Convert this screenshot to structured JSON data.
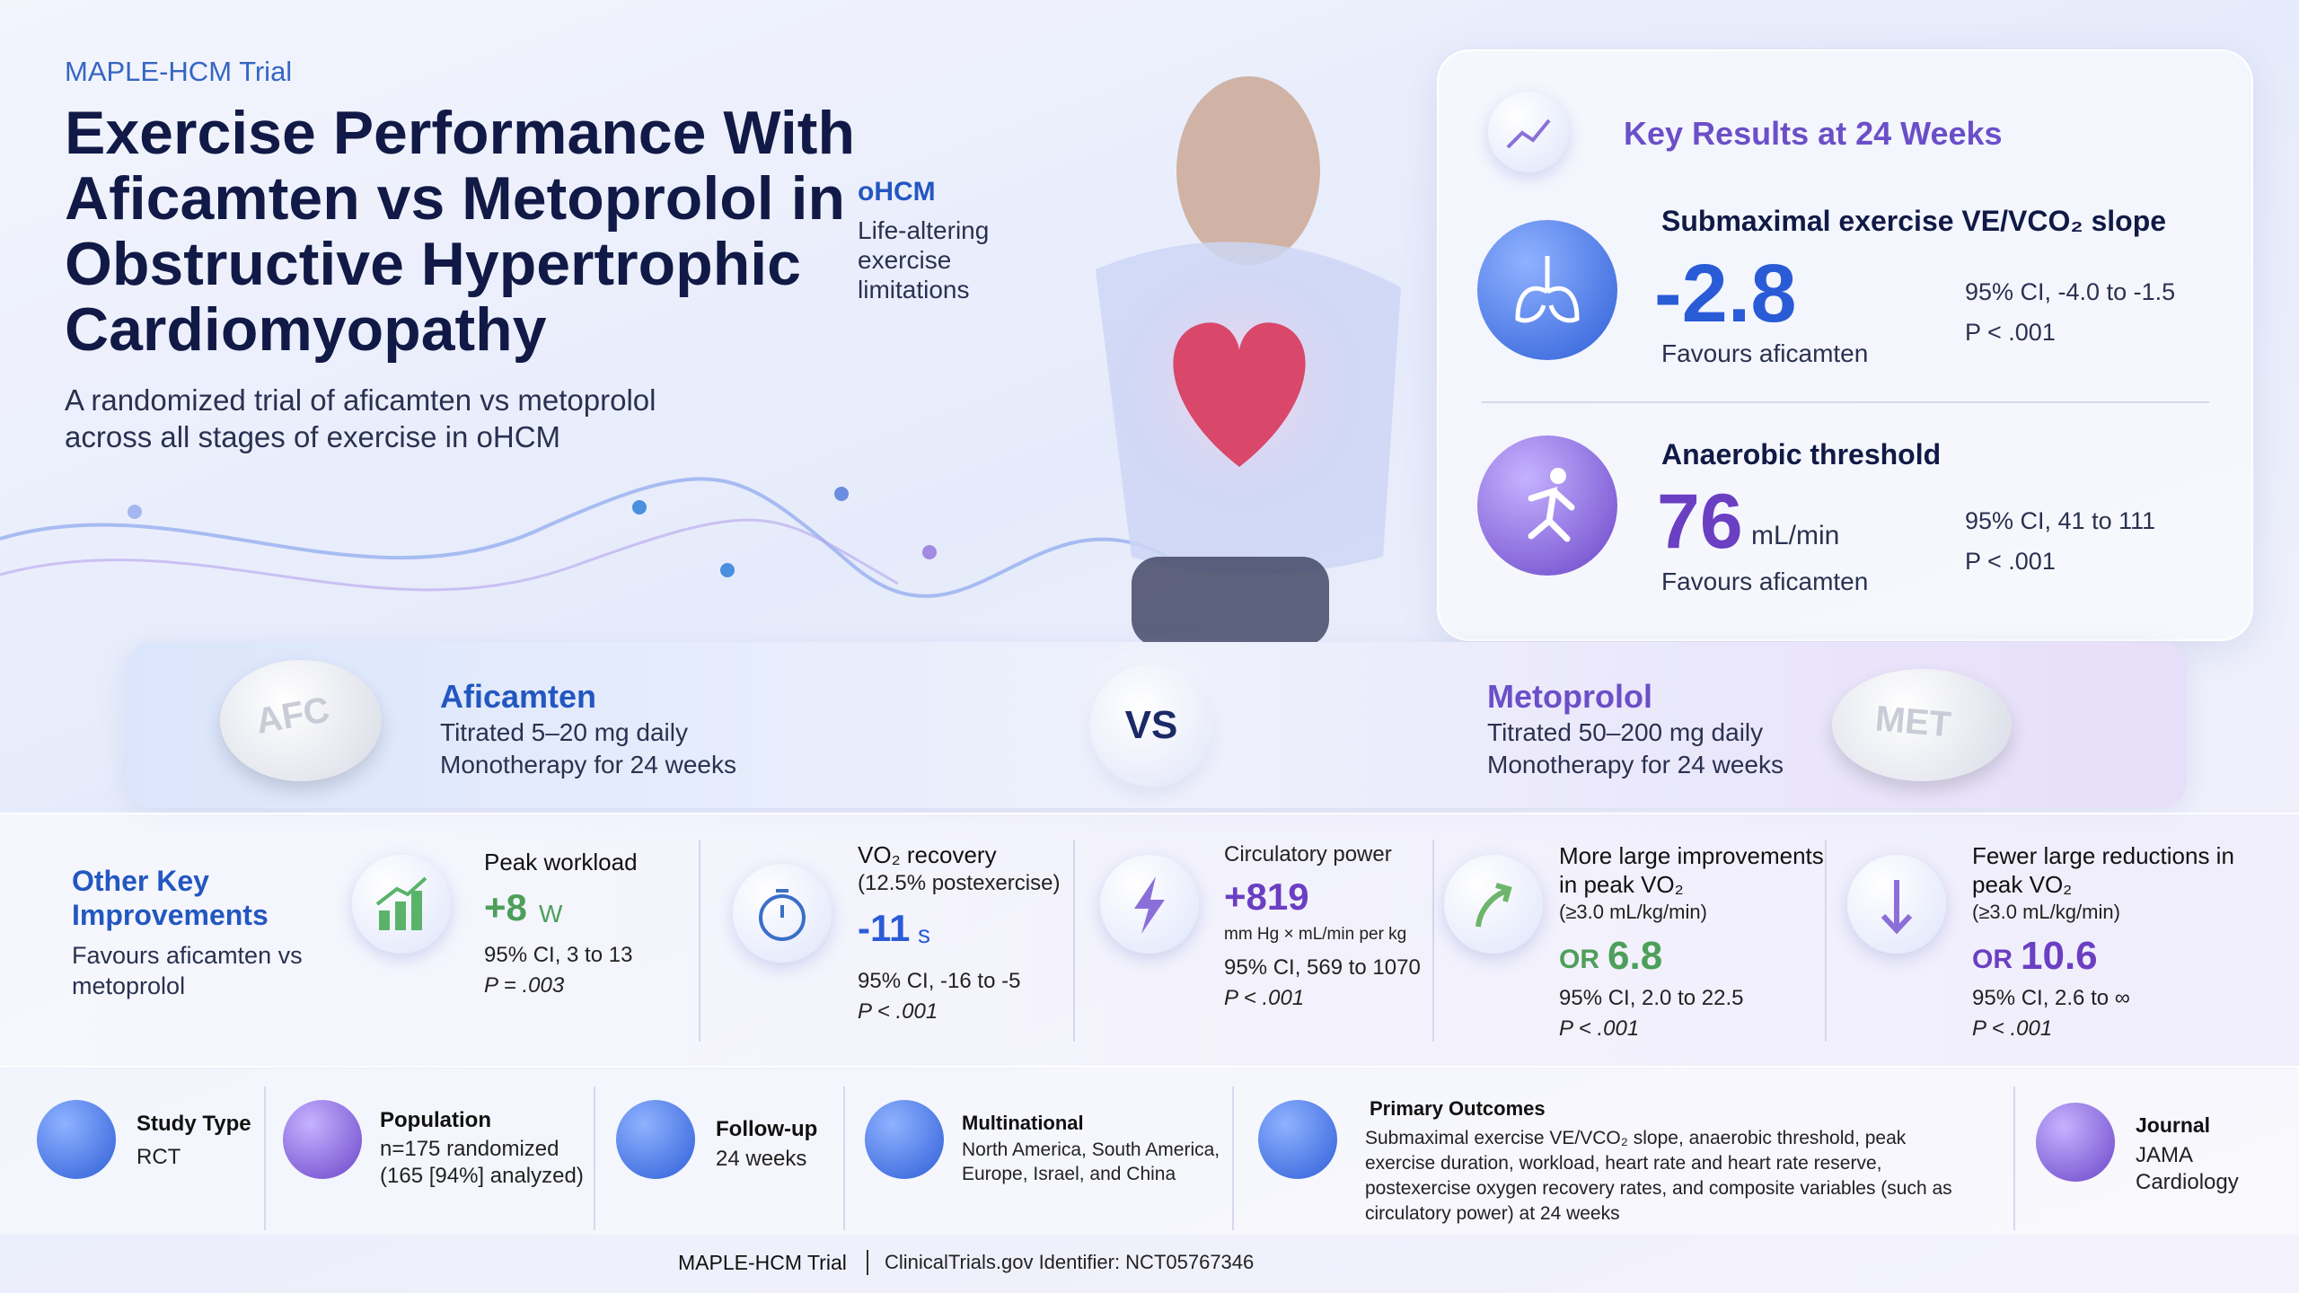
{
  "header": {
    "kicker": "MAPLE-HCM Trial",
    "title": "Exercise Performance With Aficamten vs Metoprolol in Obstructive Hypertrophic Cardiomyopathy",
    "subtitle": "A randomized trial of aficamten vs metoprolol across all stages of exercise in oHCM"
  },
  "callout": {
    "title": "oHCM",
    "text": "Life-altering exercise limitations"
  },
  "key_results": {
    "title": "Key Results at 24 Weeks",
    "items": [
      {
        "label": "Submaximal exercise VE/VCO₂ slope",
        "value": "-2.8",
        "note": "Favours aficamten",
        "ci": "95% CI, -4.0 to -1.5",
        "p": "P < .001"
      },
      {
        "label": "Anaerobic threshold",
        "value": "76",
        "unit": "mL/min",
        "note": "Favours aficamten",
        "ci": "95% CI, 41 to 111",
        "p": "P < .001"
      }
    ]
  },
  "comparison": {
    "left": {
      "pill": "AFC",
      "name": "Aficamten",
      "dose": "Titrated 5–20 mg daily",
      "duration": "Monotherapy for 24 weeks"
    },
    "vs": "VS",
    "right": {
      "pill": "MET",
      "name": "Metoprolol",
      "dose": "Titrated 50–200 mg daily",
      "duration": "Monotherapy for 24 weeks"
    }
  },
  "other": {
    "title": "Other Key Improvements",
    "subtitle": "Favours aficamten vs metoprolol",
    "items": [
      {
        "label": "Peak workload",
        "value": "+8",
        "unit": "W",
        "ci": "95% CI, 3 to 13",
        "p": "P = .003"
      },
      {
        "label": "VO₂ recovery",
        "detail": "(12.5% postexercise)",
        "value": "-11",
        "unit": "s",
        "ci": "95% CI, -16 to -5",
        "p": "P < .001"
      },
      {
        "label": "Circulatory power",
        "value": "+819",
        "unit": "mm Hg × mL/min per kg",
        "ci": "95% CI, 569 to 1070",
        "p": "P < .001"
      },
      {
        "label": "More large improvements in peak VO₂",
        "detail": "(≥3.0 mL/kg/min)",
        "prefix": "OR",
        "value": "6.8",
        "ci": "95% CI, 2.0 to 22.5",
        "p": "P < .001"
      },
      {
        "label": "Fewer large reductions in peak VO₂",
        "detail": "(≥3.0 mL/kg/min)",
        "prefix": "OR",
        "value": "10.6",
        "ci": "95% CI, 2.6 to ∞",
        "p": "P < .001"
      }
    ]
  },
  "study": [
    {
      "label": "Study Type",
      "text": "RCT"
    },
    {
      "label": "Population",
      "text": "n=175 randomized (165 [94%] analyzed)"
    },
    {
      "label": "Follow-up",
      "text": "24 weeks"
    },
    {
      "label": "Multinational",
      "text": "North America, South America, Europe, Israel, and China"
    },
    {
      "label": "Primary Outcomes",
      "text": "Submaximal exercise VE/VCO₂ slope, anaerobic threshold, peak exercise duration, workload, heart rate and heart rate reserve, postexercise oxygen recovery rates, and composite variables (such as circulatory power) at 24 weeks"
    },
    {
      "label": "Journal",
      "text": "JAMA Cardiology"
    }
  ],
  "footer": {
    "trial": "MAPLE-HCM Trial",
    "registry": "ClinicalTrials.gov Identifier: NCT05767346"
  }
}
